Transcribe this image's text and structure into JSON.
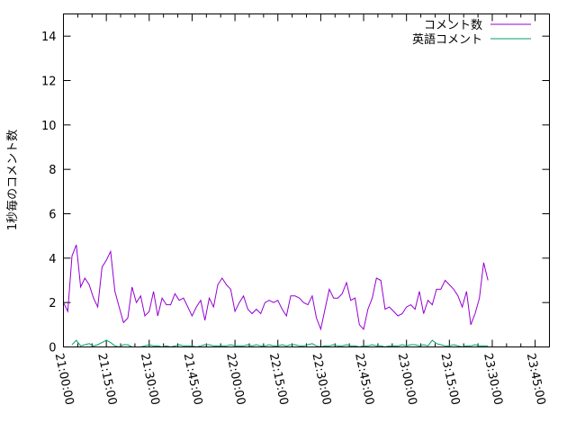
{
  "chart_data": {
    "type": "line",
    "title": "",
    "xlabel": "",
    "ylabel": "1秒毎のコメント数",
    "ylim": [
      0,
      15
    ],
    "yticks": [
      "0",
      "2",
      "4",
      "6",
      "8",
      "10",
      "12",
      "14"
    ],
    "xlim": [
      "21:00:00",
      "23:50:00"
    ],
    "xticks": [
      "21:00:00",
      "21:15:00",
      "21:30:00",
      "21:45:00",
      "22:00:00",
      "22:15:00",
      "22:30:00",
      "22:45:00",
      "23:00:00",
      "23:15:00",
      "23:30:00",
      "23:45:00"
    ],
    "grid": false,
    "legend_position": "top-right",
    "series": [
      {
        "name": "コメント数",
        "color": "#9400d3",
        "values": [
          2.0,
          1.6,
          4.1,
          4.6,
          2.7,
          3.1,
          2.8,
          2.2,
          1.8,
          3.6,
          3.9,
          4.3,
          2.5,
          1.8,
          1.1,
          1.3,
          2.7,
          2.0,
          2.3,
          1.4,
          1.6,
          2.5,
          1.4,
          2.2,
          1.9,
          1.9,
          2.4,
          2.1,
          2.2,
          1.8,
          1.4,
          1.8,
          2.1,
          1.2,
          2.2,
          1.8,
          2.8,
          3.1,
          2.8,
          2.6,
          1.6,
          2.0,
          2.3,
          1.7,
          1.5,
          1.7,
          1.5,
          2.0,
          2.1,
          2.0,
          2.1,
          1.7,
          1.4,
          2.3,
          2.3,
          2.2,
          2.0,
          1.9,
          2.3,
          1.3,
          0.8,
          1.7,
          2.6,
          2.2,
          2.2,
          2.4,
          2.9,
          2.1,
          2.2,
          1.0,
          0.8,
          1.7,
          2.2,
          3.1,
          3.0,
          1.7,
          1.8,
          1.6,
          1.4,
          1.5,
          1.8,
          1.9,
          1.7,
          2.5,
          1.5,
          2.1,
          1.9,
          2.6,
          2.6,
          3.0,
          2.8,
          2.6,
          2.3,
          1.8,
          2.5,
          1.0,
          1.5,
          2.2,
          3.8,
          3.0
        ]
      },
      {
        "name": "英語コメント",
        "color": "#009e73",
        "values": [
          null,
          null,
          0.1,
          0.3,
          0.05,
          0.1,
          0.15,
          0.05,
          0.1,
          0.2,
          0.3,
          0.2,
          0.05,
          0.0,
          0.1,
          0.1,
          0.0,
          0.0,
          0.0,
          0.05,
          0.1,
          0.05,
          0.05,
          0.0,
          0.05,
          0.0,
          0.05,
          0.1,
          0.05,
          0.05,
          0.05,
          0.0,
          0.05,
          0.1,
          0.1,
          0.05,
          0.05,
          0.05,
          0.05,
          0.1,
          0.05,
          0.05,
          0.05,
          0.1,
          0.05,
          0.1,
          0.05,
          0.05,
          0.1,
          0.05,
          0.05,
          0.1,
          0.05,
          0.1,
          0.1,
          0.05,
          0.05,
          0.1,
          0.15,
          0.05,
          0.0,
          0.05,
          0.05,
          0.1,
          0.05,
          0.05,
          0.1,
          0.05,
          0.05,
          0.0,
          0.05,
          0.05,
          0.1,
          0.05,
          0.05,
          0.0,
          0.05,
          0.05,
          0.05,
          0.1,
          0.05,
          0.1,
          0.1,
          0.05,
          0.1,
          0.05,
          0.3,
          0.15,
          0.1,
          0.05,
          0.05,
          0.1,
          0.05,
          0.0,
          0.05,
          0.05,
          0.1,
          0.05,
          0.05,
          0.05
        ]
      }
    ]
  }
}
